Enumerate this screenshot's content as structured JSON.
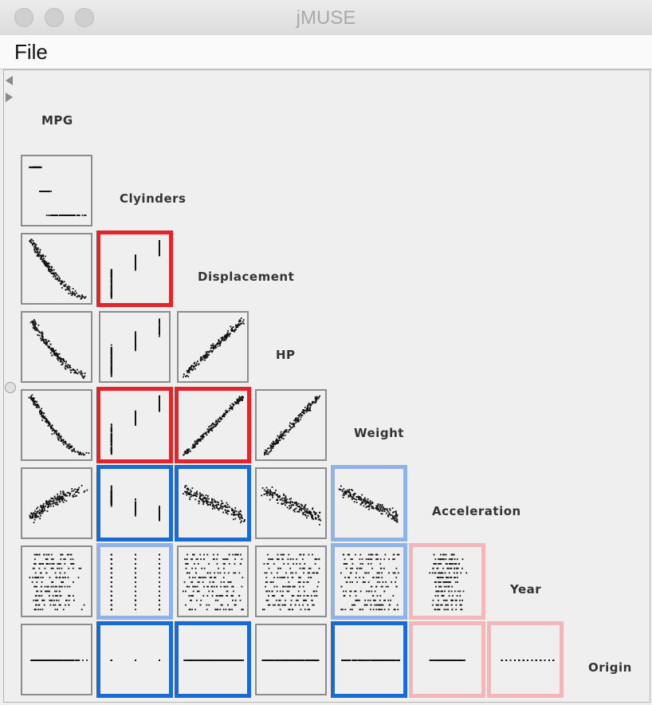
{
  "window": {
    "title": "jMUSE"
  },
  "menu": {
    "file_label": "File"
  },
  "variables": [
    "MPG",
    "Clyinders",
    "Displacement",
    "HP",
    "Weight",
    "Acceleration",
    "Year",
    "Origin"
  ],
  "highlight_colors": {
    "red": "#e32529",
    "light_red": "#f1b7b9",
    "blue": "#1a6ad3",
    "light_blue": "#8fb3e6"
  },
  "highlights": [
    {
      "row": 2,
      "col": 1,
      "color": "red"
    },
    {
      "row": 4,
      "col": 1,
      "color": "red"
    },
    {
      "row": 4,
      "col": 2,
      "color": "red"
    },
    {
      "row": 5,
      "col": 1,
      "color": "blue"
    },
    {
      "row": 5,
      "col": 2,
      "color": "blue"
    },
    {
      "row": 5,
      "col": 4,
      "color": "light_blue"
    },
    {
      "row": 6,
      "col": 1,
      "color": "light_blue"
    },
    {
      "row": 6,
      "col": 4,
      "color": "light_blue"
    },
    {
      "row": 6,
      "col": 5,
      "color": "light_red"
    },
    {
      "row": 7,
      "col": 1,
      "color": "blue"
    },
    {
      "row": 7,
      "col": 2,
      "color": "blue"
    },
    {
      "row": 7,
      "col": 4,
      "color": "blue"
    },
    {
      "row": 7,
      "col": 5,
      "color": "light_red"
    },
    {
      "row": 7,
      "col": 6,
      "color": "light_red"
    }
  ]
}
